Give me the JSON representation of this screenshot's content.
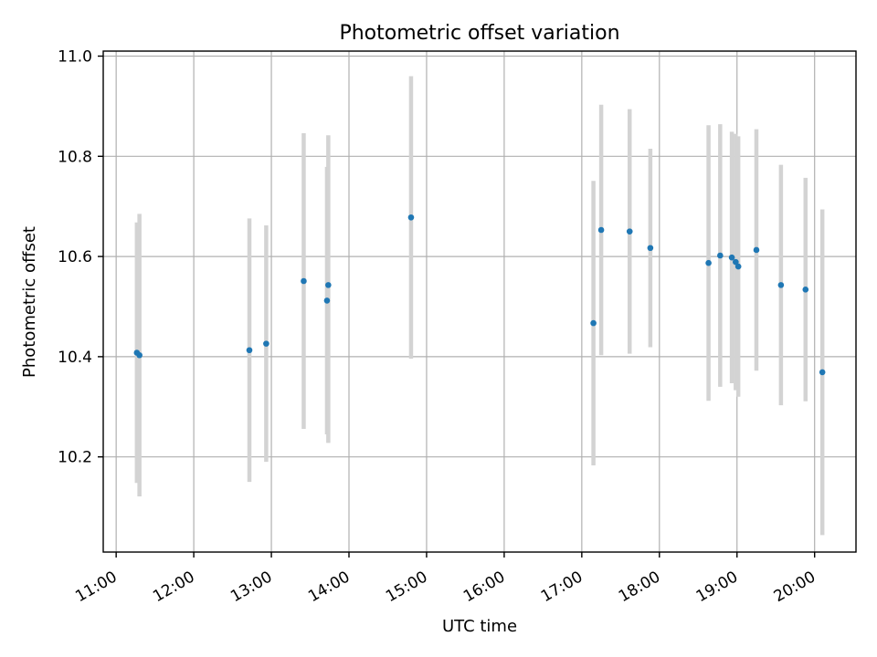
{
  "chart_data": {
    "type": "scatter",
    "title": "Photometric offset variation",
    "xlabel": "UTC time",
    "ylabel": "Photometric offset",
    "xlim": [
      "10:50",
      "20:32"
    ],
    "ylim": [
      10.01,
      11.01
    ],
    "x_ticks": [
      "11:00",
      "12:00",
      "13:00",
      "14:00",
      "15:00",
      "16:00",
      "17:00",
      "18:00",
      "19:00",
      "20:00"
    ],
    "y_ticks": [
      10.2,
      10.4,
      10.6,
      10.8,
      11.0
    ],
    "y_tick_labels": [
      "10.2",
      "10.4",
      "10.6",
      "10.8",
      "11.0"
    ],
    "grid": true,
    "marker_color": "#1f77b4",
    "errorbar_color": "#d3d3d3",
    "points": [
      {
        "time": "11:16",
        "y": 10.408,
        "ylo": 10.148,
        "yhi": 10.668
      },
      {
        "time": "11:18",
        "y": 10.403,
        "ylo": 10.121,
        "yhi": 10.685
      },
      {
        "time": "12:43",
        "y": 10.413,
        "ylo": 10.15,
        "yhi": 10.676
      },
      {
        "time": "12:56",
        "y": 10.426,
        "ylo": 10.19,
        "yhi": 10.662
      },
      {
        "time": "13:25",
        "y": 10.551,
        "ylo": 10.256,
        "yhi": 10.846
      },
      {
        "time": "13:43",
        "y": 10.512,
        "ylo": 10.245,
        "yhi": 10.779
      },
      {
        "time": "13:44",
        "y": 10.543,
        "ylo": 10.228,
        "yhi": 10.842
      },
      {
        "time": "14:48",
        "y": 10.678,
        "ylo": 10.396,
        "yhi": 10.96
      },
      {
        "time": "17:09",
        "y": 10.467,
        "ylo": 10.183,
        "yhi": 10.751
      },
      {
        "time": "17:15",
        "y": 10.653,
        "ylo": 10.403,
        "yhi": 10.903
      },
      {
        "time": "17:37",
        "y": 10.65,
        "ylo": 10.406,
        "yhi": 10.894
      },
      {
        "time": "17:53",
        "y": 10.617,
        "ylo": 10.419,
        "yhi": 10.815
      },
      {
        "time": "18:38",
        "y": 10.587,
        "ylo": 10.312,
        "yhi": 10.862
      },
      {
        "time": "18:47",
        "y": 10.602,
        "ylo": 10.34,
        "yhi": 10.864
      },
      {
        "time": "18:56",
        "y": 10.598,
        "ylo": 10.347,
        "yhi": 10.849
      },
      {
        "time": "18:59",
        "y": 10.589,
        "ylo": 10.333,
        "yhi": 10.845
      },
      {
        "time": "19:01",
        "y": 10.58,
        "ylo": 10.32,
        "yhi": 10.84
      },
      {
        "time": "19:15",
        "y": 10.613,
        "ylo": 10.372,
        "yhi": 10.854
      },
      {
        "time": "19:34",
        "y": 10.543,
        "ylo": 10.303,
        "yhi": 10.783
      },
      {
        "time": "19:53",
        "y": 10.534,
        "ylo": 10.311,
        "yhi": 10.757
      },
      {
        "time": "20:06",
        "y": 10.369,
        "ylo": 10.044,
        "yhi": 10.694
      }
    ]
  }
}
